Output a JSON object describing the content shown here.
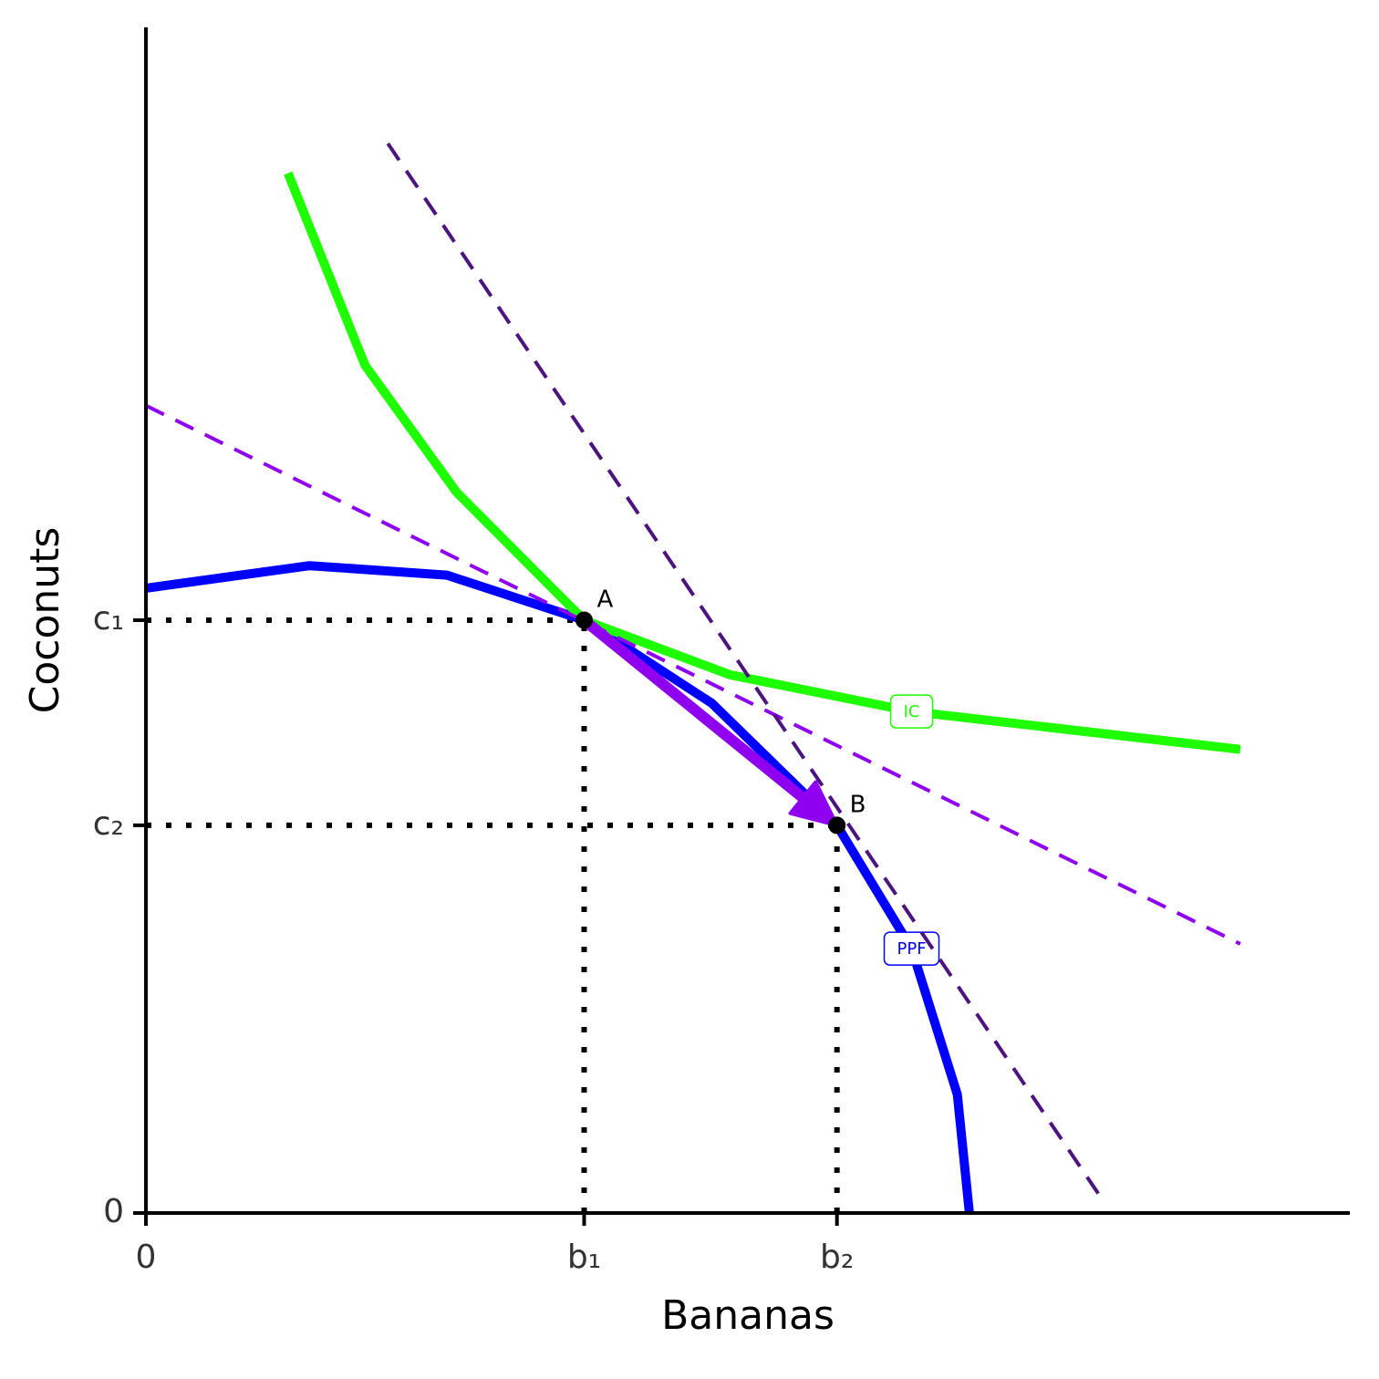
{
  "chart_data": {
    "type": "line",
    "x_label": "Bananas",
    "y_label": "Coconuts",
    "xlim": [
      0,
      100
    ],
    "ylim": [
      0,
      100
    ],
    "xticks": [
      0,
      {
        "value": 36.4,
        "label": "b₁"
      },
      {
        "value": 57.4,
        "label": "b₂"
      }
    ],
    "yticks": [
      0,
      {
        "value": 50,
        "label": "c₁"
      },
      {
        "value": 32.7,
        "label": "c₂"
      }
    ],
    "series": [
      {
        "name": "PPF",
        "color": "#0000ff",
        "x": [
          0,
          13.6,
          25,
          36.4,
          47,
          57.4,
          63.6,
          67.4,
          68.4
        ],
        "values": [
          52.7,
          54.6,
          53.8,
          50,
          43,
          32.7,
          22.3,
          10,
          0
        ]
      },
      {
        "name": "IC",
        "color": "#1eff00",
        "x": [
          11.8,
          18.2,
          25.8,
          36.4,
          48.5,
          63.6,
          90.9
        ],
        "values": [
          87.7,
          71.5,
          60.8,
          50,
          45.4,
          42.3,
          39.1
        ]
      },
      {
        "color": "#9000f0",
        "dash": true,
        "x": [
          0,
          90.9
        ],
        "values": [
          68.1,
          22.7
        ]
      },
      {
        "color": "#4d1480",
        "dash": true,
        "x": [
          20.1,
          79.2
        ],
        "values": [
          90.2,
          1.5
        ]
      }
    ],
    "arrow": {
      "color": "#9000f0",
      "x": [
        36.4,
        57.4
      ],
      "values": [
        50,
        32.7
      ]
    },
    "points": {
      "labels": [
        "A",
        "B"
      ],
      "x": [
        36.4,
        57.4
      ],
      "values": [
        50,
        32.7
      ]
    }
  }
}
